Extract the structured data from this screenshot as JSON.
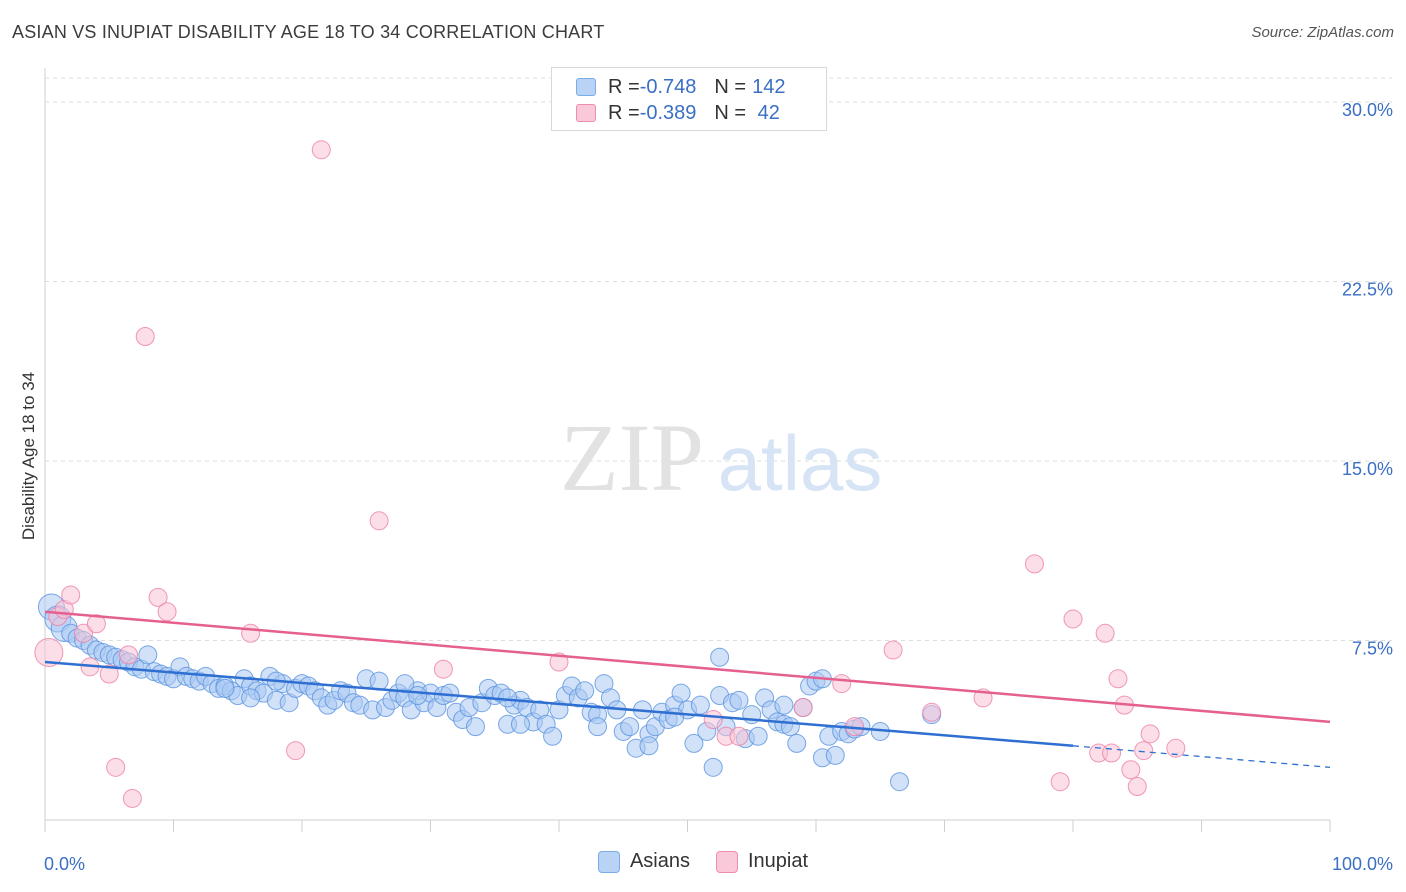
{
  "title": "ASIAN VS INUPIAT DISABILITY AGE 18 TO 34 CORRELATION CHART",
  "source": "Source: ZipAtlas.com",
  "watermark": {
    "zip": "ZIP",
    "atlas": "atlas"
  },
  "legend_top": [
    {
      "r_label": "R = ",
      "r_value": "-0.748",
      "n_label": "N = ",
      "n_value": "142",
      "color": "#7aaee8",
      "fill": "#b9d3f5"
    },
    {
      "r_label": "R = ",
      "r_value": "-0.389",
      "n_label": "N = ",
      "n_value": " 42",
      "color": "#f08cb0",
      "fill": "#f9c9da"
    }
  ],
  "legend_bottom": [
    {
      "label": "Asians",
      "color": "#7aaee8",
      "fill": "#b9d3f5"
    },
    {
      "label": "Inupiat",
      "color": "#f08cb0",
      "fill": "#f9c9da"
    }
  ],
  "chart_data": {
    "type": "scatter",
    "title": "ASIAN VS INUPIAT DISABILITY AGE 18 TO 34 CORRELATION CHART",
    "xlabel": "",
    "ylabel": "Disability Age 18 to 34",
    "xlim": [
      0,
      100
    ],
    "ylim": [
      0,
      31
    ],
    "x_tick_labels": [
      "0.0%",
      "100.0%"
    ],
    "y_ticks": [
      7.5,
      15.0,
      22.5,
      30.0
    ],
    "y_tick_labels": [
      "7.5%",
      "15.0%",
      "22.5%",
      "30.0%"
    ],
    "grid": true,
    "series": [
      {
        "name": "Asians",
        "color": "#5a94e0",
        "fill": "#a9c8f2",
        "trend": {
          "x0": 0,
          "y0": 6.6,
          "x1": 80,
          "y1": 3.1,
          "dash_to": 100,
          "dash_y": 2.2,
          "color": "#2e6fd1"
        },
        "points": [
          [
            0.5,
            8.9
          ],
          [
            1.0,
            8.4
          ],
          [
            1.5,
            8.0
          ],
          [
            2.0,
            7.8
          ],
          [
            2.5,
            7.6
          ],
          [
            3.0,
            7.5
          ],
          [
            3.5,
            7.3
          ],
          [
            4.0,
            7.1
          ],
          [
            4.5,
            7.0
          ],
          [
            5.0,
            6.9
          ],
          [
            5.5,
            6.8
          ],
          [
            6.0,
            6.7
          ],
          [
            6.5,
            6.6
          ],
          [
            7.0,
            6.4
          ],
          [
            7.5,
            6.3
          ],
          [
            8.0,
            6.9
          ],
          [
            8.5,
            6.2
          ],
          [
            9.0,
            6.1
          ],
          [
            9.5,
            6.0
          ],
          [
            10.0,
            5.9
          ],
          [
            10.5,
            6.4
          ],
          [
            11.0,
            6.0
          ],
          [
            11.5,
            5.9
          ],
          [
            12.0,
            5.8
          ],
          [
            12.5,
            6.0
          ],
          [
            13.0,
            5.7
          ],
          [
            13.5,
            5.5
          ],
          [
            14.0,
            5.6
          ],
          [
            14.5,
            5.4
          ],
          [
            15.0,
            5.2
          ],
          [
            15.5,
            5.9
          ],
          [
            16.0,
            5.6
          ],
          [
            16.5,
            5.4
          ],
          [
            17.0,
            5.3
          ],
          [
            17.5,
            6.0
          ],
          [
            18.0,
            5.0
          ],
          [
            18.5,
            5.7
          ],
          [
            19.0,
            4.9
          ],
          [
            19.5,
            5.5
          ],
          [
            20.0,
            5.7
          ],
          [
            20.5,
            5.6
          ],
          [
            21.0,
            5.4
          ],
          [
            21.5,
            5.1
          ],
          [
            22.0,
            4.8
          ],
          [
            22.5,
            5.0
          ],
          [
            23.0,
            5.4
          ],
          [
            23.5,
            5.3
          ],
          [
            24.0,
            4.9
          ],
          [
            24.5,
            4.8
          ],
          [
            25.0,
            5.9
          ],
          [
            25.5,
            4.6
          ],
          [
            26.0,
            5.8
          ],
          [
            26.5,
            4.7
          ],
          [
            27.0,
            5.0
          ],
          [
            27.5,
            5.3
          ],
          [
            28.0,
            5.1
          ],
          [
            28.5,
            4.6
          ],
          [
            29.0,
            5.4
          ],
          [
            29.5,
            4.9
          ],
          [
            30.0,
            5.3
          ],
          [
            30.5,
            4.7
          ],
          [
            31.0,
            5.2
          ],
          [
            31.5,
            5.3
          ],
          [
            32.0,
            4.5
          ],
          [
            32.5,
            4.2
          ],
          [
            33.0,
            4.7
          ],
          [
            33.5,
            3.9
          ],
          [
            34.0,
            4.9
          ],
          [
            34.5,
            5.5
          ],
          [
            35.0,
            5.2
          ],
          [
            35.5,
            5.3
          ],
          [
            36.0,
            4.0
          ],
          [
            36.5,
            4.8
          ],
          [
            37.0,
            5.0
          ],
          [
            37.5,
            4.7
          ],
          [
            38.0,
            4.1
          ],
          [
            38.5,
            4.6
          ],
          [
            39.0,
            4.0
          ],
          [
            39.5,
            3.5
          ],
          [
            40.0,
            4.6
          ],
          [
            40.5,
            5.2
          ],
          [
            41.0,
            5.6
          ],
          [
            41.5,
            5.1
          ],
          [
            42.0,
            5.4
          ],
          [
            42.5,
            4.5
          ],
          [
            43.0,
            4.4
          ],
          [
            43.5,
            5.7
          ],
          [
            44.0,
            5.1
          ],
          [
            44.5,
            4.6
          ],
          [
            45.0,
            3.7
          ],
          [
            45.5,
            3.9
          ],
          [
            46.0,
            3.0
          ],
          [
            46.5,
            4.6
          ],
          [
            47.0,
            3.6
          ],
          [
            47.5,
            3.9
          ],
          [
            48.0,
            4.5
          ],
          [
            48.5,
            4.2
          ],
          [
            49.0,
            4.8
          ],
          [
            49.5,
            5.3
          ],
          [
            50.0,
            4.6
          ],
          [
            50.5,
            3.2
          ],
          [
            51.0,
            4.8
          ],
          [
            51.5,
            3.7
          ],
          [
            52.0,
            2.2
          ],
          [
            52.5,
            5.2
          ],
          [
            53.0,
            3.9
          ],
          [
            53.5,
            4.9
          ],
          [
            54.0,
            5.0
          ],
          [
            54.5,
            3.4
          ],
          [
            55.0,
            4.4
          ],
          [
            55.5,
            3.5
          ],
          [
            56.0,
            5.1
          ],
          [
            56.5,
            4.6
          ],
          [
            57.0,
            4.1
          ],
          [
            57.5,
            4.0
          ],
          [
            58.0,
            3.9
          ],
          [
            58.5,
            3.2
          ],
          [
            59.0,
            4.7
          ],
          [
            59.5,
            5.6
          ],
          [
            60.0,
            5.8
          ],
          [
            60.5,
            2.6
          ],
          [
            61.0,
            3.5
          ],
          [
            61.5,
            2.7
          ],
          [
            62.0,
            3.7
          ],
          [
            62.5,
            3.6
          ],
          [
            63.0,
            3.8
          ],
          [
            63.5,
            3.9
          ],
          [
            65.0,
            3.7
          ],
          [
            66.5,
            1.6
          ],
          [
            69.0,
            4.4
          ],
          [
            52.5,
            6.8
          ],
          [
            60.5,
            5.9
          ],
          [
            57.5,
            4.8
          ],
          [
            28.0,
            5.7
          ],
          [
            29.0,
            5.2
          ],
          [
            14.0,
            5.5
          ],
          [
            16.0,
            5.1
          ],
          [
            18.0,
            5.8
          ],
          [
            43.0,
            3.9
          ],
          [
            36.0,
            5.1
          ],
          [
            37.0,
            4.0
          ],
          [
            47.0,
            3.1
          ],
          [
            49.0,
            4.3
          ]
        ]
      },
      {
        "name": "Inupiat",
        "color": "#ec7fa6",
        "fill": "#f7c3d6",
        "trend": {
          "x0": 0,
          "y0": 8.7,
          "x1": 100,
          "y1": 4.1,
          "color": "#e5608f"
        },
        "points": [
          [
            0.3,
            7.0
          ],
          [
            1.0,
            8.5
          ],
          [
            1.5,
            8.8
          ],
          [
            2.0,
            9.4
          ],
          [
            3.0,
            7.8
          ],
          [
            3.5,
            6.4
          ],
          [
            4.0,
            8.2
          ],
          [
            5.0,
            6.1
          ],
          [
            5.5,
            2.2
          ],
          [
            6.5,
            6.9
          ],
          [
            6.8,
            0.9
          ],
          [
            7.8,
            20.2
          ],
          [
            8.8,
            9.3
          ],
          [
            9.5,
            8.7
          ],
          [
            16.0,
            7.8
          ],
          [
            19.5,
            2.9
          ],
          [
            21.5,
            28.0
          ],
          [
            26.0,
            12.5
          ],
          [
            52.0,
            4.2
          ],
          [
            53.0,
            3.5
          ],
          [
            54.0,
            3.5
          ],
          [
            59.0,
            4.7
          ],
          [
            62.0,
            5.7
          ],
          [
            63.0,
            3.9
          ],
          [
            66.0,
            7.1
          ],
          [
            69.0,
            4.5
          ],
          [
            73.0,
            5.1
          ],
          [
            77.0,
            10.7
          ],
          [
            79.0,
            1.6
          ],
          [
            80.0,
            8.4
          ],
          [
            82.0,
            2.8
          ],
          [
            82.5,
            7.8
          ],
          [
            83.0,
            2.8
          ],
          [
            83.5,
            5.9
          ],
          [
            84.0,
            4.8
          ],
          [
            84.5,
            2.1
          ],
          [
            85.0,
            1.4
          ],
          [
            85.5,
            2.9
          ],
          [
            86.0,
            3.6
          ],
          [
            88.0,
            3.0
          ],
          [
            40.0,
            6.6
          ],
          [
            31.0,
            6.3
          ]
        ]
      }
    ]
  }
}
